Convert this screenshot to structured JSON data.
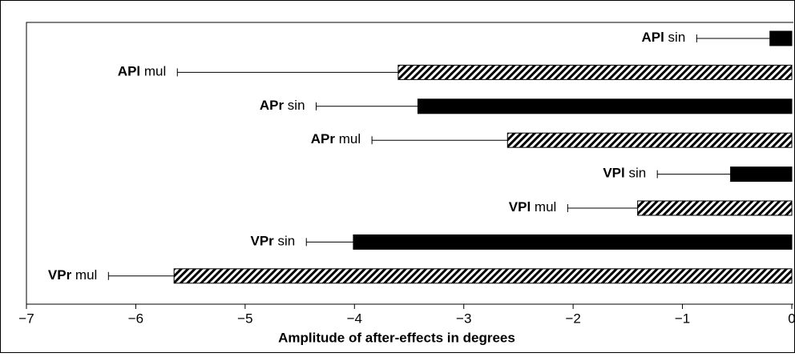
{
  "chart_data": {
    "type": "hbar",
    "categories": [
      "APl sin",
      "APl mul",
      "APr sin",
      "APr mul",
      "VPl sin",
      "VPl mul",
      "VPr sin",
      "VPr mul"
    ],
    "values": [
      -0.2,
      -3.6,
      -3.42,
      -2.6,
      -0.56,
      -1.41,
      -4.01,
      -5.65
    ],
    "errors": [
      0.67,
      2.02,
      0.93,
      1.24,
      0.67,
      0.64,
      0.43,
      0.6
    ],
    "fills": [
      "solid",
      "hatched",
      "solid",
      "hatched",
      "solid",
      "hatched",
      "solid",
      "hatched"
    ],
    "color": "#000000",
    "x_label": "Amplitude of after-effects in degrees",
    "xlim": [
      -7,
      0
    ],
    "xticks": [
      {
        "value": -7,
        "label": "−7"
      },
      {
        "value": -6,
        "label": "−6"
      },
      {
        "value": -5,
        "label": "−5"
      },
      {
        "value": -4,
        "label": "−4"
      },
      {
        "value": -3,
        "label": "−3"
      },
      {
        "value": -2,
        "label": "−2"
      },
      {
        "value": -1,
        "label": "−1"
      },
      0
    ]
  }
}
